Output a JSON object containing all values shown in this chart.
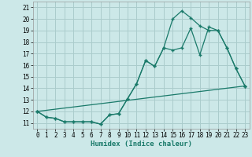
{
  "title": "",
  "xlabel": "Humidex (Indice chaleur)",
  "background_color": "#cce8e8",
  "grid_color": "#aacccc",
  "line_color": "#1a7a6a",
  "xlim": [
    -0.5,
    23.5
  ],
  "ylim": [
    10.5,
    21.5
  ],
  "yticks": [
    11,
    12,
    13,
    14,
    15,
    16,
    17,
    18,
    19,
    20,
    21
  ],
  "xticks": [
    0,
    1,
    2,
    3,
    4,
    5,
    6,
    7,
    8,
    9,
    10,
    11,
    12,
    13,
    14,
    15,
    16,
    17,
    18,
    19,
    20,
    21,
    22,
    23
  ],
  "series1_x": [
    0,
    1,
    2,
    3,
    4,
    5,
    6,
    7,
    8,
    9,
    10,
    11,
    12,
    13,
    14,
    15,
    16,
    17,
    18,
    19,
    20,
    21,
    22,
    23
  ],
  "series1_y": [
    12.0,
    11.5,
    11.4,
    11.1,
    11.1,
    11.1,
    11.1,
    10.9,
    11.7,
    11.8,
    13.1,
    14.4,
    16.4,
    15.9,
    17.5,
    17.3,
    17.5,
    19.2,
    16.9,
    19.3,
    19.0,
    17.5,
    15.7,
    14.2
  ],
  "series2_x": [
    0,
    1,
    2,
    3,
    4,
    5,
    6,
    7,
    8,
    9,
    10,
    11,
    12,
    13,
    14,
    15,
    16,
    17,
    18,
    19,
    20,
    21,
    22,
    23
  ],
  "series2_y": [
    12.0,
    11.5,
    11.4,
    11.1,
    11.1,
    11.1,
    11.1,
    10.9,
    11.7,
    11.8,
    13.1,
    14.4,
    16.4,
    15.9,
    17.5,
    20.0,
    20.7,
    20.1,
    19.4,
    19.0,
    19.0,
    17.5,
    15.7,
    14.2
  ],
  "series3_x": [
    0,
    23
  ],
  "series3_y": [
    12.0,
    14.2
  ]
}
